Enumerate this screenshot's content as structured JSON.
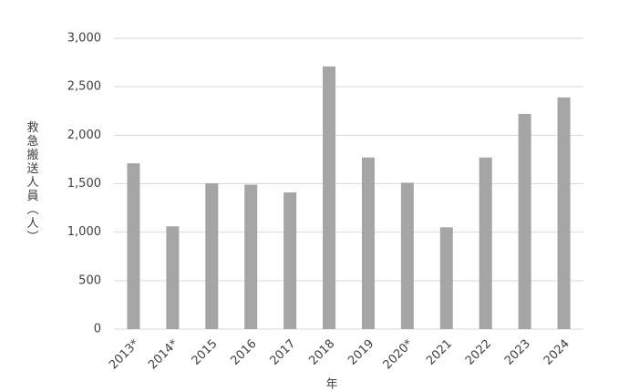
{
  "chart_data": {
    "type": "bar",
    "y_axis_label": "救急搬送人員（人）",
    "x_axis_label": "年",
    "categories": [
      "2013*",
      "2014*",
      "2015",
      "2016",
      "2017",
      "2018",
      "2019",
      "2020*",
      "2021",
      "2022",
      "2023",
      "2024"
    ],
    "values": [
      1710,
      1060,
      1505,
      1490,
      1410,
      2710,
      1770,
      1510,
      1050,
      1770,
      2220,
      2390
    ],
    "color": "#a5a5a5",
    "ylim": [
      0,
      3000
    ],
    "yticks": [
      0,
      500,
      {
        "value": 1000,
        "label": "1,000"
      },
      {
        "value": 1500,
        "label": "1,500"
      },
      {
        "value": 2000,
        "label": "2,000"
      },
      {
        "value": 2500,
        "label": "2,500"
      },
      {
        "value": 3000,
        "label": "3,000"
      }
    ],
    "grid": true
  }
}
